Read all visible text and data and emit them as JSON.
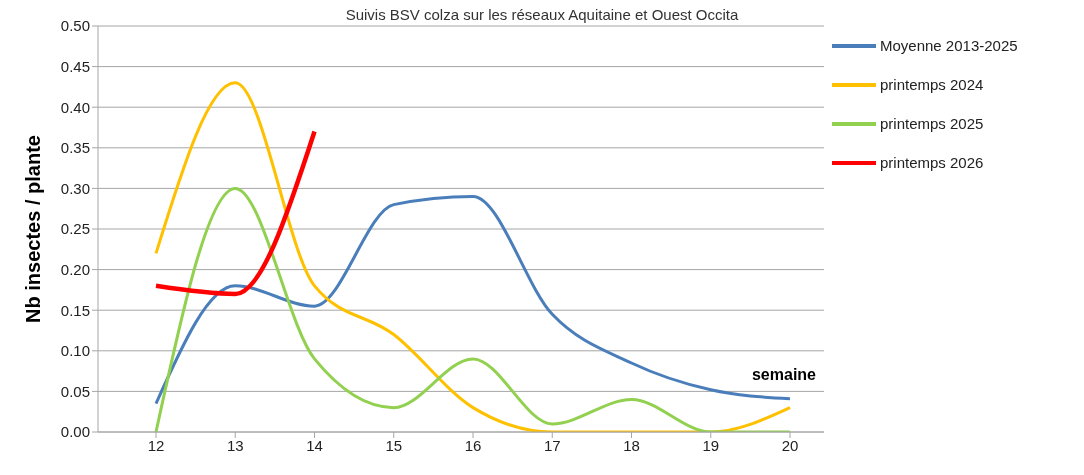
{
  "chart_data": {
    "type": "line",
    "title": "Suivis BSV colza sur les réseaux Aquitaine et Ouest Occita",
    "xlabel": "semaine",
    "ylabel": "Nb insectes / plante",
    "categories": [
      "12",
      "13",
      "14",
      "15",
      "16",
      "17",
      "18",
      "19",
      "20"
    ],
    "series": [
      {
        "name": "Moyenne 2013-2025",
        "color": "#4a7ebb",
        "values": [
          0.035,
          0.18,
          0.155,
          0.28,
          0.29,
          0.145,
          0.085,
          0.052,
          0.041
        ]
      },
      {
        "name": "printemps 2024",
        "color": "#ffc000",
        "values": [
          0.22,
          0.43,
          0.18,
          0.12,
          0.03,
          0,
          0,
          0,
          0.03
        ]
      },
      {
        "name": "printemps 2025",
        "color": "#92d050",
        "values": [
          0,
          0.3,
          0.09,
          0.03,
          0.09,
          0.01,
          0.04,
          0,
          0
        ]
      },
      {
        "name": "printemps 2026",
        "color": "#ff0000",
        "values": [
          0.18,
          0.17,
          0.37,
          null,
          null,
          null,
          null,
          null,
          null
        ]
      }
    ],
    "ylim": [
      0,
      0.5
    ],
    "yticks": [
      {
        "value": 0,
        "label": "0.00"
      },
      {
        "value": 0.05,
        "label": "0.05"
      },
      {
        "value": 0.1,
        "label": "0.10"
      },
      {
        "value": 0.15,
        "label": "0.15"
      },
      {
        "value": 0.2,
        "label": "0.20"
      },
      {
        "value": 0.25,
        "label": "0.25"
      },
      {
        "value": 0.3,
        "label": "0.30"
      },
      {
        "value": 0.35,
        "label": "0.35"
      },
      {
        "value": 0.4,
        "label": "0.40"
      },
      {
        "value": 0.45,
        "label": "0.45"
      },
      {
        "value": 0.5,
        "label": "0.50"
      }
    ],
    "grid": "y",
    "legend": "top right",
    "marker": "none",
    "line_style": "solid"
  }
}
